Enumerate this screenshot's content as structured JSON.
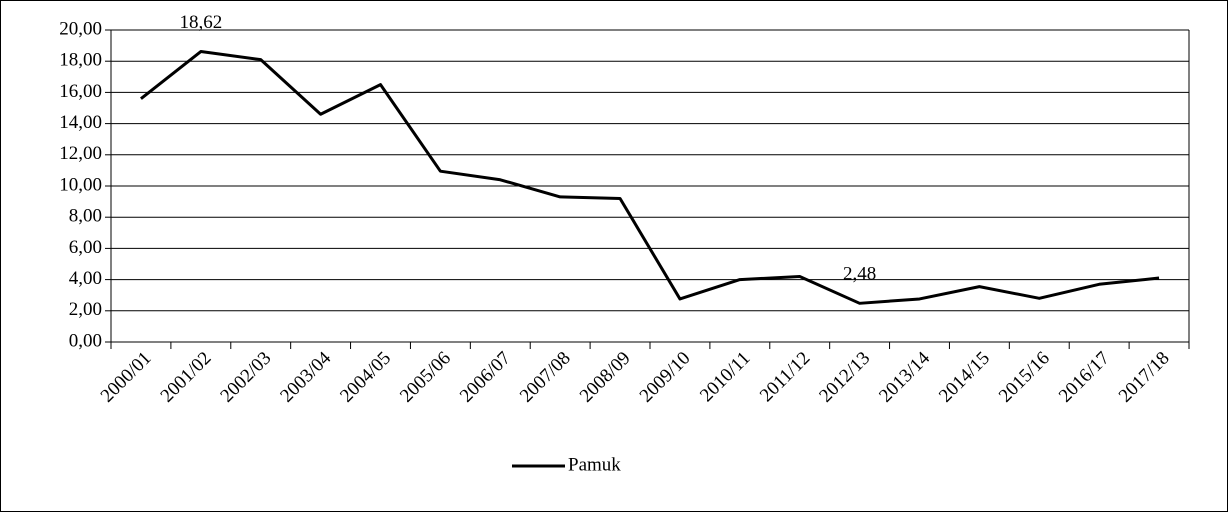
{
  "chart_data": {
    "type": "line",
    "categories": [
      "2000/01",
      "2001/02",
      "2002/03",
      "2003/04",
      "2004/05",
      "2005/06",
      "2006/07",
      "2007/08",
      "2008/09",
      "2009/10",
      "2010/11",
      "2011/12",
      "2012/13",
      "2013/14",
      "2014/15",
      "2015/16",
      "2016/17",
      "2017/18"
    ],
    "series": [
      {
        "name": "Pamuk",
        "color": "#000000",
        "values": [
          15.6,
          18.62,
          18.1,
          14.6,
          16.5,
          10.95,
          10.4,
          9.3,
          9.2,
          2.76,
          4.0,
          4.2,
          2.48,
          2.76,
          3.55,
          2.8,
          3.7,
          4.1
        ],
        "value_labels": [
          null,
          "18,62",
          null,
          null,
          null,
          null,
          null,
          null,
          null,
          null,
          null,
          null,
          "2,48",
          null,
          null,
          null,
          null,
          null
        ]
      }
    ],
    "ylim": [
      0,
      20
    ],
    "yticks": [
      {
        "value": 0,
        "label": "0,00"
      },
      {
        "value": 2,
        "label": "2,00"
      },
      {
        "value": 4,
        "label": "4,00"
      },
      {
        "value": 6,
        "label": "6,00"
      },
      {
        "value": 8,
        "label": "8,00"
      },
      {
        "value": 10,
        "label": "10,00"
      },
      {
        "value": 12,
        "label": "12,00"
      },
      {
        "value": 14,
        "label": "14,00"
      },
      {
        "value": 16,
        "label": "16,00"
      },
      {
        "value": 18,
        "label": "18,00"
      },
      {
        "value": 20,
        "label": "20,00"
      }
    ],
    "grid": true,
    "legend": "bottom"
  }
}
